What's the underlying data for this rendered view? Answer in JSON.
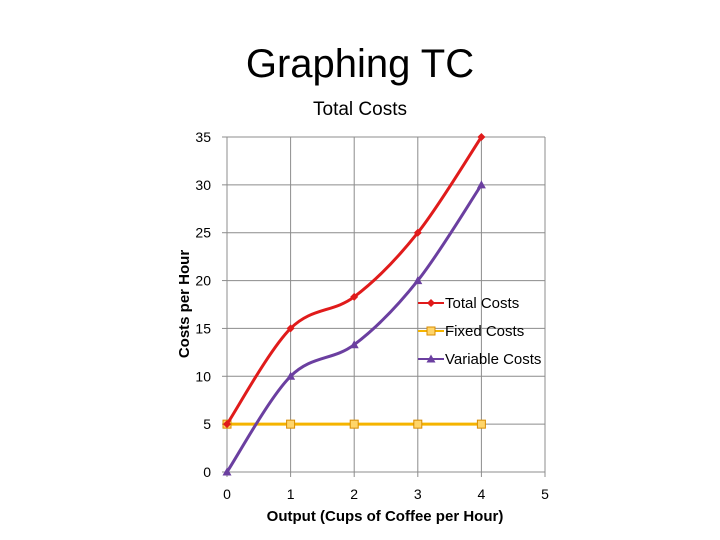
{
  "slide": {
    "title": "Graphing TC"
  },
  "chart_data": {
    "type": "line",
    "title": "Total Costs",
    "xlabel": "Output (Cups of Coffee per Hour)",
    "ylabel": "Costs per Hour",
    "xlim": [
      0,
      5
    ],
    "ylim": [
      0,
      35
    ],
    "x_ticks": [
      0,
      1,
      2,
      3,
      4,
      5
    ],
    "y_ticks": [
      0,
      5,
      10,
      15,
      20,
      25,
      30,
      35
    ],
    "grid": true,
    "legend_position": "right",
    "x": [
      0,
      1,
      2,
      3,
      4
    ],
    "series": [
      {
        "name": "Total Costs",
        "values": [
          5,
          15,
          18.3,
          25,
          35
        ],
        "color": "#e01b1b",
        "marker": "diamond"
      },
      {
        "name": "Fixed Costs",
        "values": [
          5,
          5,
          5,
          5,
          5
        ],
        "color": "#f5b400",
        "marker": "square"
      },
      {
        "name": "Variable Costs",
        "values": [
          0,
          10,
          13.3,
          20,
          30
        ],
        "color": "#6b3fa0",
        "marker": "triangle"
      }
    ]
  }
}
